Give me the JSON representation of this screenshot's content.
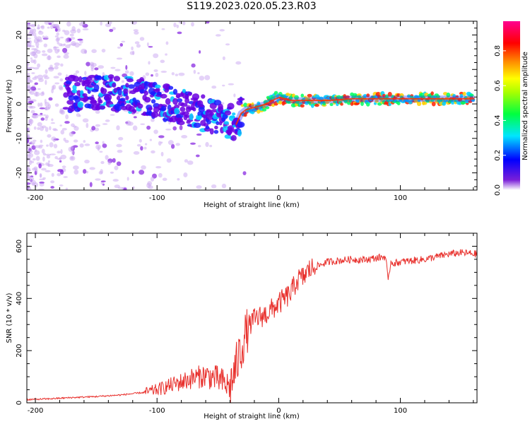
{
  "title": "S119.2023.020.05.23.R03",
  "chart_data": [
    {
      "type": "heatmap",
      "xlabel": "Height of straight line (km)",
      "ylabel": "Frequency (Hz)",
      "xlim": [
        -207,
        163
      ],
      "ylim": [
        -25,
        24
      ],
      "xticks": [
        -200,
        -100,
        0,
        100
      ],
      "yticks": [
        -20,
        -10,
        0,
        10,
        20
      ],
      "colorbar": {
        "label": "Normalized spectral amplitude",
        "range": [
          0.0,
          0.97
        ],
        "ticks": [
          "0.0",
          "0.2",
          "0.4",
          "0.6",
          "0.8"
        ],
        "colors": [
          "#ffffff",
          "#5a00d0",
          "#0000ff",
          "#00e0ff",
          "#00ff00",
          "#ffff00",
          "#ff8000",
          "#ff0000",
          "#ff0090"
        ]
      },
      "ridge": {
        "x": [
          -200,
          -180,
          -160,
          -140,
          -120,
          -100,
          -80,
          -60,
          -45,
          -35,
          -30,
          -20,
          -10,
          0,
          10,
          20,
          40,
          60,
          80,
          100,
          120,
          140,
          163
        ],
        "y": [
          3,
          3,
          3,
          3,
          2.5,
          1,
          -1,
          -3,
          -5,
          -6,
          -2,
          -1,
          0,
          2,
          1,
          1,
          1,
          1.5,
          1.5,
          1.5,
          1.5,
          1.5,
          1.5
        ]
      }
    },
    {
      "type": "line",
      "xlabel": "Height of straight line (km)",
      "ylabel": "SNR (10 * v/v)",
      "xlim": [
        -207,
        163
      ],
      "ylim": [
        0,
        650
      ],
      "xticks": [
        -200,
        -100,
        0,
        100
      ],
      "yticks": [
        0,
        200,
        400,
        600
      ],
      "color": "#e8302c",
      "series": [
        {
          "x": [
            -207,
            -190,
            -170,
            -150,
            -130,
            -110,
            -100,
            -90,
            -80,
            -70,
            -60,
            -50,
            -45,
            -40,
            -35,
            -30,
            -28,
            -25,
            -20,
            -15,
            -10,
            -5,
            0,
            5,
            10,
            15,
            20,
            25,
            30,
            35,
            40,
            50,
            60,
            70,
            80,
            88,
            90,
            92,
            95,
            100,
            110,
            120,
            130,
            140,
            150,
            163
          ],
          "y": [
            12,
            15,
            20,
            24,
            30,
            40,
            50,
            65,
            80,
            95,
            105,
            90,
            75,
            60,
            140,
            220,
            250,
            290,
            320,
            330,
            340,
            360,
            380,
            400,
            420,
            470,
            480,
            510,
            520,
            530,
            540,
            545,
            550,
            548,
            555,
            560,
            460,
            540,
            535,
            540,
            545,
            550,
            560,
            570,
            575,
            570
          ]
        }
      ]
    }
  ]
}
